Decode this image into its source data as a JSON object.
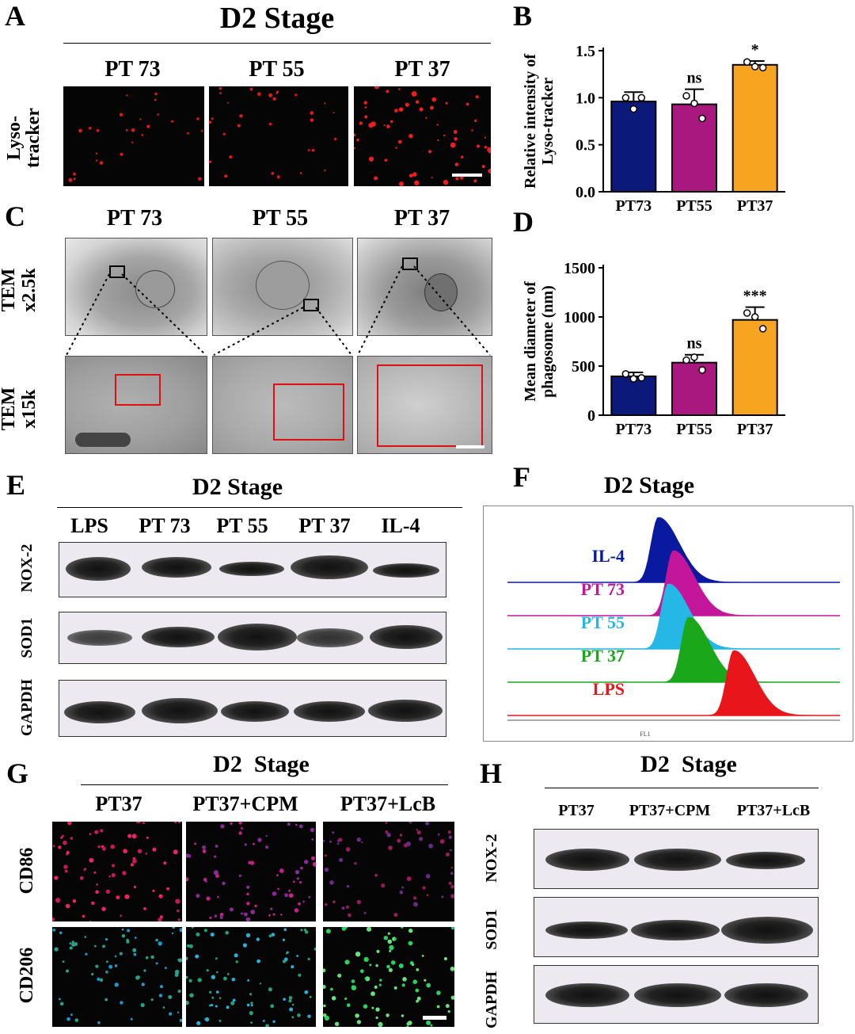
{
  "panels": {
    "A": {
      "label": "A",
      "title": "D2 Stage",
      "columns": [
        "PT 73",
        "PT 55",
        "PT 37"
      ],
      "row_label": "Lyso-tracker"
    },
    "B": {
      "label": "B"
    },
    "C": {
      "label": "C",
      "columns": [
        "PT 73",
        "PT 55",
        "PT 37"
      ],
      "rows": [
        "TEM x2.5k",
        "TEM x15k"
      ]
    },
    "D": {
      "label": "D"
    },
    "E": {
      "label": "E",
      "title": "D2 Stage",
      "columns": [
        "LPS",
        "PT 73",
        "PT 55",
        "PT 37",
        "IL-4"
      ],
      "rows": [
        "NOX-2",
        "SOD1",
        "GAPDH"
      ]
    },
    "F": {
      "label": "F",
      "title": "D2 Stage",
      "axis_label": "FL1"
    },
    "G": {
      "label": "G",
      "title": "D2  Stage",
      "columns": [
        "PT37",
        "PT37+CPM",
        "PT37+LcB"
      ],
      "rows": [
        "CD86",
        "CD206"
      ]
    },
    "H": {
      "label": "H",
      "title": "D2  Stage",
      "columns": [
        "PT37",
        "PT37+CPM",
        "PT37+LcB"
      ],
      "rows": [
        "NOX-2",
        "SOD1",
        "GAPDH"
      ]
    }
  },
  "colors": {
    "PT73": "#0b1a7a",
    "PT55": "#a8187e",
    "PT37": "#f7a521",
    "IL4": "#0a1aa0",
    "PT73_hist": "#c4169b",
    "PT55_hist": "#25b7e6",
    "PT37_hist": "#1aa81a",
    "LPS_hist": "#e8161a"
  },
  "chart_data": [
    {
      "type": "bar",
      "panel": "B",
      "categories": [
        "PT73",
        "PT55",
        "PT37"
      ],
      "values": [
        0.96,
        0.93,
        1.35
      ],
      "errors": [
        0.1,
        0.16,
        0.04
      ],
      "points": [
        [
          1.0,
          0.88,
          1.0
        ],
        [
          1.02,
          0.94,
          0.78
        ],
        [
          1.38,
          1.33,
          1.32
        ]
      ],
      "annotations": [
        "",
        "ns",
        "*"
      ],
      "ylabel": "Relative intensity of Lyso-tracker",
      "ylim": [
        0,
        1.5
      ],
      "yticks": [
        "0.0",
        "0.5",
        "1.0",
        "1.5"
      ],
      "ytick_values": [
        0,
        0.5,
        1.0,
        1.5
      ]
    },
    {
      "type": "bar",
      "panel": "D",
      "categories": [
        "PT73",
        "PT55",
        "PT37"
      ],
      "values": [
        395,
        535,
        970
      ],
      "errors": [
        40,
        80,
        130
      ],
      "points": [
        [
          420,
          370,
          380
        ],
        [
          560,
          590,
          460
        ],
        [
          1040,
          1000,
          880
        ]
      ],
      "annotations": [
        "",
        "ns",
        "***"
      ],
      "ylabel": "Mean diameter of phagosome (nm)",
      "ylim": [
        0,
        1500
      ],
      "yticks": [
        "0",
        "500",
        "1000",
        "1500"
      ],
      "ytick_values": [
        0,
        500,
        1000,
        1500
      ]
    },
    {
      "type": "area",
      "panel": "F",
      "series": [
        {
          "name": "IL-4",
          "peak": 0.3
        },
        {
          "name": "PT 73",
          "peak": 0.33
        },
        {
          "name": "PT 55",
          "peak": 0.32
        },
        {
          "name": "PT 37",
          "peak": 0.36
        },
        {
          "name": "LPS",
          "peak": 0.45
        }
      ]
    }
  ]
}
